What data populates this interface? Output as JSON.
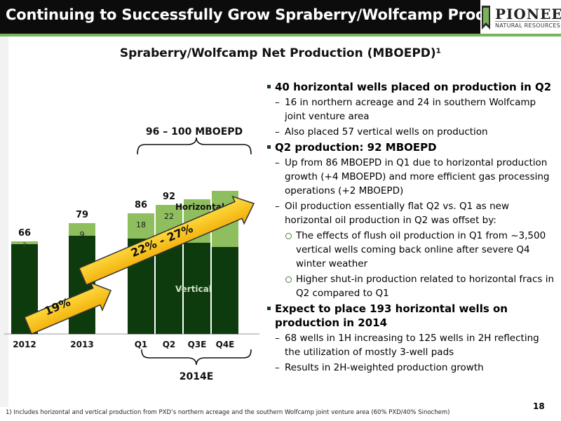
{
  "header": {
    "title": "Continuing to Successfully Grow Spraberry/Wolfcamp Production",
    "logo_name": "PIONEER",
    "logo_sub": "NATURAL RESOURCES"
  },
  "chart_data": {
    "type": "bar",
    "title": "Spraberry/Wolfcamp Net Production (MBOEPD)¹",
    "categories": [
      "2012",
      "2013",
      "Q1",
      "Q2",
      "Q3E",
      "Q4E"
    ],
    "series": [
      {
        "name": "Vertical",
        "values": [
          64,
          70,
          68,
          70,
          65,
          62
        ]
      },
      {
        "name": "Horizontal",
        "values": [
          2,
          9,
          18,
          22,
          31,
          40
        ]
      }
    ],
    "totals": [
      "66",
      "79",
      "86",
      "92",
      "",
      ""
    ],
    "segment_labels": {
      "horizontal": [
        "2",
        "9",
        "18",
        "22",
        "",
        ""
      ]
    },
    "series_labels": {
      "horizontal": "Horizontal",
      "vertical": "Vertical"
    },
    "range_label": "96 – 100 MBOEPD",
    "group_label": "2014E",
    "growth_2012_2013": "19%",
    "growth_2014": "22% - 27%",
    "ylim": [
      0,
      110
    ],
    "colors": {
      "vertical": "#0d3b0d",
      "horizontal": "#8fbe5e",
      "arrow": "#f5b800",
      "arrow_light": "#ffe24a"
    }
  },
  "bullets": [
    {
      "level": 1,
      "text": "40 horizontal wells placed on production in Q2"
    },
    {
      "level": 2,
      "marker": "–",
      "text": "16 in northern acreage and 24 in southern Wolfcamp joint venture area"
    },
    {
      "level": 2,
      "marker": "–",
      "text": "Also placed 57 vertical wells on production"
    },
    {
      "level": 1,
      "text": "Q2 production: 92 MBOEPD"
    },
    {
      "level": 2,
      "marker": "–",
      "text": "Up from 86 MBOEPD in Q1 due to horizontal production growth (+4 MBOEPD) and more efficient gas processing operations (+2 MBOEPD)"
    },
    {
      "level": 2,
      "marker": "–",
      "text": "Oil production essentially flat Q2 vs. Q1 as new horizontal oil production in Q2 was offset by:"
    },
    {
      "level": 3,
      "text": "The effects of flush oil production in Q1 from ~3,500 vertical wells coming back online after severe Q4 winter weather"
    },
    {
      "level": 3,
      "text": "Higher shut-in production related to horizontal fracs in Q2 compared to Q1"
    },
    {
      "level": 1,
      "text": "Expect to place 193 horizontal wells on production in 2014"
    },
    {
      "level": 2,
      "marker": "–",
      "text": "68 wells in 1H increasing to 125 wells in 2H reflecting the utilization of mostly 3-well pads"
    },
    {
      "level": 2,
      "marker": "–",
      "text": "Results in 2H-weighted production growth"
    }
  ],
  "footnote": "1) Includes horizontal and vertical production from PXD’s northern acreage and the southern Wolfcamp joint venture area (60% PXD/40% Sinochem)",
  "page_number": "18"
}
